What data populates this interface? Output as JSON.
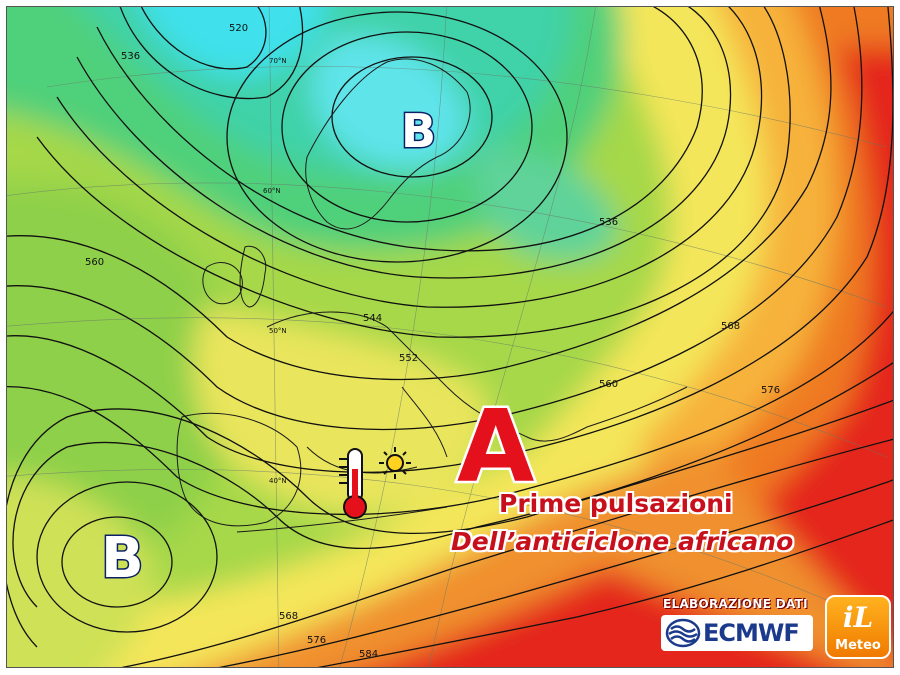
{
  "map": {
    "pressure_centers": [
      {
        "label": "B",
        "kind": "low",
        "location": "Scandinavia"
      },
      {
        "label": "B",
        "kind": "low",
        "location": "west of Iberia"
      },
      {
        "label": "A",
        "kind": "high",
        "location": "central Mediterranean"
      }
    ],
    "isohypse_labels": [
      "520",
      "536",
      "544",
      "552",
      "560",
      "568",
      "576",
      "584",
      "536",
      "560",
      "568",
      "576"
    ],
    "latitude_labels": [
      "70°N",
      "60°N",
      "50°N",
      "40°N"
    ],
    "icons": [
      "thermometer-icon",
      "sun-icon"
    ],
    "colors": {
      "cold": "#3fe1ec",
      "cool": "#4fd07a",
      "mild": "#a6d848",
      "warm": "#f4e65a",
      "hot": "#f08a2a",
      "very_hot": "#e4281c",
      "headline": "#c8101c"
    }
  },
  "headline": {
    "line1": "Prime pulsazioni",
    "line2": "Dell’anticiclone africano"
  },
  "credits": {
    "text": "ELABORAZIONE DATI",
    "provider": "ECMWF",
    "brand_top": "iL",
    "brand_bottom": "Meteo"
  }
}
